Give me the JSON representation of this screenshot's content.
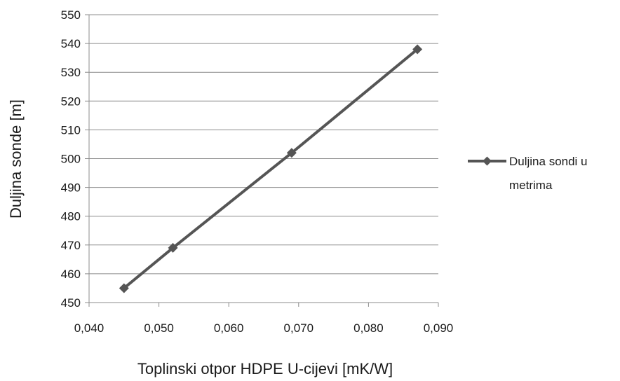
{
  "chart_data": {
    "type": "line",
    "x": [
      0.045,
      0.052,
      0.069,
      0.087
    ],
    "series": [
      {
        "name": "Duljina sondi u metrima",
        "values": [
          455,
          469,
          502,
          538
        ],
        "color": "#555555",
        "marker": "diamond"
      }
    ],
    "xlabel": "Toplinski otpor  HDPE U-cijevi [mK/W]",
    "ylabel": "Duljina sonde [m]",
    "xlim": [
      0.04,
      0.09
    ],
    "ylim": [
      450,
      550
    ],
    "xticks": [
      "0,040",
      "0,050",
      "0,060",
      "0,070",
      "0,080",
      "0,090"
    ],
    "yticks": [
      "450",
      "460",
      "470",
      "480",
      "490",
      "500",
      "510",
      "520",
      "530",
      "540",
      "550"
    ],
    "grid": "horizontal",
    "legend_position": "right",
    "legend": {
      "line1": "Duljina sondi u",
      "line2": "metrima"
    }
  }
}
